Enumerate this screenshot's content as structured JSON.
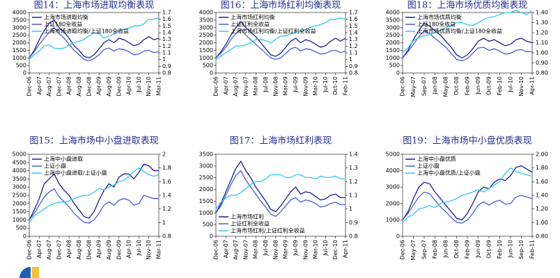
{
  "chart_data": [
    {
      "type": "line",
      "title": "图14：上海市场进取均衡表现",
      "categories": [
        "Dec-06",
        null,
        "Apr-07",
        null,
        "Aug-07",
        null,
        "Dec-07",
        null,
        "Apr-08",
        null,
        "Aug-08",
        null,
        "Dec-08",
        null,
        "Apr-09",
        null,
        "Aug-09",
        null,
        "Dec-09",
        null,
        "Apr-10",
        null,
        "Jul-10",
        null,
        "Nov-10",
        null,
        "Mar-11"
      ],
      "series": [
        {
          "name": "上海市场进取均衡",
          "color": "#1c1c8a",
          "values": [
            1000,
            1500,
            2200,
            2800,
            3300,
            3500,
            3000,
            2700,
            2300,
            1800,
            1500,
            1100,
            1000,
            1200,
            1600,
            2000,
            2200,
            2000,
            2300,
            2200,
            2000,
            1800,
            1900,
            2200,
            2400,
            2200,
            2300
          ]
        },
        {
          "name": "上证180全收益",
          "color": "#4b5bd6",
          "values": [
            1000,
            1400,
            1900,
            2300,
            2700,
            3000,
            2600,
            2300,
            1900,
            1500,
            1200,
            900,
            800,
            950,
            1200,
            1550,
            1650,
            1450,
            1600,
            1550,
            1400,
            1200,
            1250,
            1450,
            1500,
            1350,
            1400
          ]
        },
        {
          "name": "上海市场进取均衡/上证180全收益",
          "color": "#2ec8ec",
          "axis": "y2",
          "values": [
            1.0,
            1.07,
            1.13,
            1.2,
            1.22,
            1.17,
            1.16,
            1.17,
            1.22,
            1.25,
            1.27,
            1.3,
            1.35,
            1.4,
            1.38,
            1.32,
            1.35,
            1.38,
            1.43,
            1.45,
            1.47,
            1.5,
            1.5,
            1.53,
            1.6,
            1.6,
            1.62
          ]
        }
      ],
      "ylim": [
        0,
        4000
      ],
      "yticks": [
        0,
        500,
        1000,
        1500,
        2000,
        2500,
        3000,
        3500,
        4000
      ],
      "y2lim": [
        0.8,
        1.7
      ],
      "y2ticks": [
        0.8,
        0.9,
        1,
        1.1,
        1.2,
        1.3,
        1.4,
        1.5,
        1.6,
        1.7
      ],
      "legend": "upper left"
    },
    {
      "type": "line",
      "title": "图16：上海市场红利均衡表现",
      "categories": [
        "Dec-06",
        null,
        "Apr-07",
        null,
        "Aug-07",
        null,
        "Nov-07",
        null,
        "Mar-08",
        null,
        "Jul-08",
        null,
        "Nov-08",
        null,
        "Mar-09",
        null,
        "Jul-09",
        null,
        "Nov-09",
        null,
        "Mar-10",
        null,
        "Jul-10",
        null,
        "Oct-10",
        null,
        "Feb-11"
      ],
      "series": [
        {
          "name": "上海市场红利均衡",
          "color": "#1c1c8a",
          "values": [
            1000,
            1400,
            1900,
            2500,
            3000,
            3400,
            3000,
            2700,
            2400,
            2000,
            1600,
            1200,
            1100,
            1300,
            1700,
            2100,
            2300,
            2000,
            2200,
            2100,
            1900,
            1700,
            1800,
            2100,
            2300,
            2100,
            2300
          ]
        },
        {
          "name": "上证红利全收益",
          "color": "#4b5bd6",
          "values": [
            1000,
            1300,
            1700,
            2200,
            2600,
            2900,
            2500,
            2200,
            1900,
            1600,
            1300,
            1000,
            900,
            1000,
            1300,
            1600,
            1700,
            1450,
            1600,
            1550,
            1400,
            1250,
            1300,
            1450,
            1500,
            1350,
            1450
          ]
        },
        {
          "name": "上海市场红利均衡/上证红利全收益",
          "color": "#2ec8ec",
          "axis": "y2",
          "values": [
            1.0,
            1.05,
            1.1,
            1.15,
            1.2,
            1.2,
            1.22,
            1.25,
            1.3,
            1.3,
            1.28,
            1.25,
            1.3,
            1.35,
            1.35,
            1.38,
            1.4,
            1.42,
            1.45,
            1.48,
            1.5,
            1.52,
            1.55,
            1.6,
            1.6,
            1.62,
            1.6
          ]
        }
      ],
      "ylim": [
        0,
        4000
      ],
      "yticks": [
        0,
        500,
        1000,
        1500,
        2000,
        2500,
        3000,
        3500,
        4000
      ],
      "y2lim": [
        0.8,
        1.7
      ],
      "y2ticks": [
        0.8,
        0.9,
        1,
        1.1,
        1.2,
        1.3,
        1.4,
        1.5,
        1.6,
        1.7
      ],
      "legend": "upper left"
    },
    {
      "type": "line",
      "title": "图18：上海市场优质均衡表现",
      "categories": [
        "Dec-06",
        null,
        "May-07",
        null,
        "Sep-07",
        null,
        "Jan-08",
        null,
        "May-08",
        null,
        "Oct-08",
        null,
        "Feb-09",
        null,
        "Jun-09",
        null,
        "Oct-09",
        null,
        "Feb-10",
        null,
        "Jul-10",
        null,
        "Nov-10",
        null,
        "Apr-11"
      ],
      "series": [
        {
          "name": "上海市场优质均衡",
          "color": "#1c1c8a",
          "values": [
            1000,
            1500,
            2200,
            2800,
            3300,
            3100,
            2800,
            2500,
            2100,
            1700,
            1200,
            1000,
            1200,
            1600,
            2100,
            2300,
            2100,
            2200,
            2000,
            1800,
            1900,
            2200,
            2300,
            2100,
            2000
          ]
        },
        {
          "name": "上证180全收益",
          "color": "#4b5bd6",
          "values": [
            1000,
            1400,
            1900,
            2400,
            2800,
            2600,
            2300,
            2000,
            1700,
            1300,
            900,
            800,
            950,
            1300,
            1650,
            1700,
            1500,
            1600,
            1450,
            1250,
            1300,
            1500,
            1550,
            1400,
            1400
          ]
        },
        {
          "name": "上海市场优质均衡/上证180全收益",
          "color": "#2ec8ec",
          "axis": "y2",
          "values": [
            1.0,
            1.05,
            1.12,
            1.15,
            1.17,
            1.18,
            1.2,
            1.22,
            1.25,
            1.27,
            1.3,
            1.3,
            1.28,
            1.27,
            1.3,
            1.33,
            1.35,
            1.36,
            1.38,
            1.4,
            1.4,
            1.42,
            1.4,
            1.38,
            1.42
          ]
        }
      ],
      "ylim": [
        0,
        4000
      ],
      "yticks": [
        0,
        500,
        1000,
        1500,
        2000,
        2500,
        3000,
        3500,
        4000
      ],
      "y2lim": [
        0.8,
        1.4
      ],
      "y2ticks": [
        {
          "value": 0.8,
          "label": "0.80"
        },
        {
          "value": 0.9,
          "label": "0.90"
        },
        {
          "value": 1,
          "label": "1.00"
        },
        {
          "value": 1.1,
          "label": "1.10"
        },
        {
          "value": 1.2,
          "label": "1.20"
        },
        {
          "value": 1.3,
          "label": "1.30"
        },
        {
          "value": 1.4,
          "label": "1.40"
        }
      ],
      "legend": "upper left"
    },
    {
      "type": "line",
      "title": "图15：上海市场中小盘进取表现",
      "categories": [
        "Dec-06",
        null,
        "Apr-07",
        null,
        "Aug-07",
        null,
        "Dec-07",
        null,
        "Apr-08",
        null,
        "Aug-08",
        null,
        "Dec-08",
        null,
        "Apr-09",
        null,
        "Aug-09",
        null,
        "Dec-09",
        null,
        "Apr-10",
        null,
        "Jul-10",
        null,
        "Nov-10",
        null,
        "Mar-11"
      ],
      "series": [
        {
          "name": "上海中小盘进取",
          "color": "#1c1c8a",
          "values": [
            1000,
            1600,
            2300,
            3200,
            3500,
            3800,
            3200,
            2800,
            2500,
            2000,
            1600,
            1200,
            1100,
            1500,
            2200,
            2800,
            3200,
            3000,
            3600,
            3800,
            3800,
            3500,
            3900,
            4400,
            4300,
            4000,
            4000
          ]
        },
        {
          "name": "上证小盘",
          "color": "#4b5bd6",
          "values": [
            1000,
            1400,
            1900,
            2400,
            2700,
            2900,
            2400,
            2100,
            1800,
            1400,
            1100,
            850,
            800,
            1000,
            1400,
            1900,
            2100,
            1900,
            2200,
            2300,
            2200,
            1900,
            2000,
            2500,
            2400,
            2300,
            2300
          ]
        },
        {
          "name": "上海中小盘进取/上证小盘",
          "color": "#2ec8ec",
          "axis": "y2",
          "values": [
            1.0,
            1.1,
            1.15,
            1.2,
            1.25,
            1.28,
            1.3,
            1.3,
            1.32,
            1.35,
            1.38,
            1.4,
            1.4,
            1.45,
            1.5,
            1.48,
            1.52,
            1.55,
            1.6,
            1.62,
            1.68,
            1.75,
            1.8,
            1.75,
            1.7,
            1.68,
            1.7
          ]
        }
      ],
      "ylim": [
        0,
        5000
      ],
      "yticks": [
        0,
        500,
        1000,
        1500,
        2000,
        2500,
        3000,
        3500,
        4000,
        4500,
        5000
      ],
      "y2lim": [
        0.8,
        2.0
      ],
      "y2ticks": [
        0.8,
        1,
        1.2,
        1.4,
        1.6,
        1.8,
        2
      ],
      "legend": "upper left"
    },
    {
      "type": "line",
      "title": "图17：上海市场红利表现",
      "categories": [
        "Dec-06",
        null,
        "Apr-07",
        null,
        "Aug-07",
        null,
        "Nov-07",
        null,
        "Mar-08",
        null,
        "Jul-08",
        null,
        "Nov-08",
        null,
        "Mar-09",
        null,
        "Jul-09",
        null,
        "Nov-09",
        null,
        "Mar-10",
        null,
        "Jul-10",
        null,
        "Dec-10",
        null,
        "Apr-11"
      ],
      "series": [
        {
          "name": "上海市场红利",
          "color": "#1c1c8a",
          "values": [
            1000,
            1400,
            1900,
            2400,
            2900,
            3200,
            2800,
            2500,
            2100,
            1800,
            1500,
            1150,
            1050,
            1300,
            1600,
            1900,
            2100,
            1800,
            1900,
            1850,
            1700,
            1550,
            1600,
            1750,
            1800,
            1650,
            1650
          ]
        },
        {
          "name": "上证红利全收益",
          "color": "#4b5bd6",
          "values": [
            1000,
            1300,
            1750,
            2200,
            2600,
            2800,
            2400,
            2100,
            1800,
            1500,
            1250,
            950,
            850,
            1050,
            1300,
            1550,
            1650,
            1450,
            1550,
            1500,
            1400,
            1250,
            1300,
            1400,
            1450,
            1350,
            1350
          ]
        },
        {
          "name": "上海市场红利/上证红利全收益",
          "color": "#2ec8ec",
          "axis": "y2",
          "values": [
            1.0,
            1.05,
            1.08,
            1.1,
            1.1,
            1.12,
            1.15,
            1.18,
            1.2,
            1.2,
            1.22,
            1.25,
            1.25,
            1.25,
            1.23,
            1.23,
            1.25,
            1.25,
            1.23,
            1.23,
            1.22,
            1.24,
            1.23,
            1.23,
            1.24,
            1.22,
            1.22
          ]
        }
      ],
      "ylim": [
        0,
        3500
      ],
      "yticks": [
        0,
        500,
        1000,
        1500,
        2000,
        2500,
        3000,
        3500
      ],
      "y2lim": [
        0.8,
        1.4
      ],
      "y2ticks": [
        0.8,
        0.9,
        1,
        1.1,
        1.2,
        1.3,
        1.4
      ],
      "legend": "lower left"
    },
    {
      "type": "line",
      "title": "图19：上海市场中小盘优质表现",
      "categories": [
        "Dec-06",
        null,
        "May-07",
        null,
        "Sep-07",
        null,
        "Feb-08",
        null,
        "Jun-08",
        null,
        "Oct-08",
        null,
        "Feb-09",
        null,
        "Jun-09",
        null,
        "Oct-09",
        null,
        "Feb-10",
        null,
        "Jun-10",
        null,
        "Sep-10",
        null,
        "Feb-11"
      ],
      "series": [
        {
          "name": "上海中小盘优质",
          "color": "#1c1c8a",
          "values": [
            1000,
            1500,
            2300,
            3000,
            3300,
            3200,
            2700,
            2300,
            1900,
            1500,
            1100,
            1000,
            1400,
            2000,
            2700,
            3000,
            2900,
            3300,
            3500,
            3400,
            3700,
            4200,
            4300,
            4100,
            3900
          ]
        },
        {
          "name": "上证小盘",
          "color": "#4b5bd6",
          "values": [
            1000,
            1400,
            1900,
            2400,
            2700,
            2600,
            2200,
            1800,
            1500,
            1150,
            850,
            800,
            1000,
            1400,
            1900,
            2100,
            1900,
            2100,
            2200,
            1950,
            2000,
            2400,
            2500,
            2400,
            2300
          ]
        },
        {
          "name": "上海中小盘优质/上证小盘",
          "color": "#2ec8ec",
          "axis": "y2",
          "values": [
            1.0,
            1.08,
            1.12,
            1.2,
            1.22,
            1.25,
            1.22,
            1.28,
            1.3,
            1.32,
            1.35,
            1.4,
            1.42,
            1.45,
            1.48,
            1.45,
            1.5,
            1.55,
            1.6,
            1.72,
            1.8,
            1.75,
            1.72,
            1.7,
            1.68
          ]
        }
      ],
      "ylim": [
        0,
        5000
      ],
      "yticks": [
        0,
        1000,
        2000,
        3000,
        4000,
        5000
      ],
      "y2lim": [
        0.8,
        2.0
      ],
      "y2ticks": [
        {
          "value": 0.8,
          "label": "0.80"
        },
        {
          "value": 1.0,
          "label": "1.00"
        },
        {
          "value": 1.2,
          "label": "1.20"
        },
        {
          "value": 1.4,
          "label": "1.40"
        },
        {
          "value": 1.6,
          "label": "1.60"
        },
        {
          "value": 1.8,
          "label": "1.80"
        },
        {
          "value": 2.0,
          "label": "2.00"
        }
      ],
      "legend": "upper left"
    }
  ]
}
